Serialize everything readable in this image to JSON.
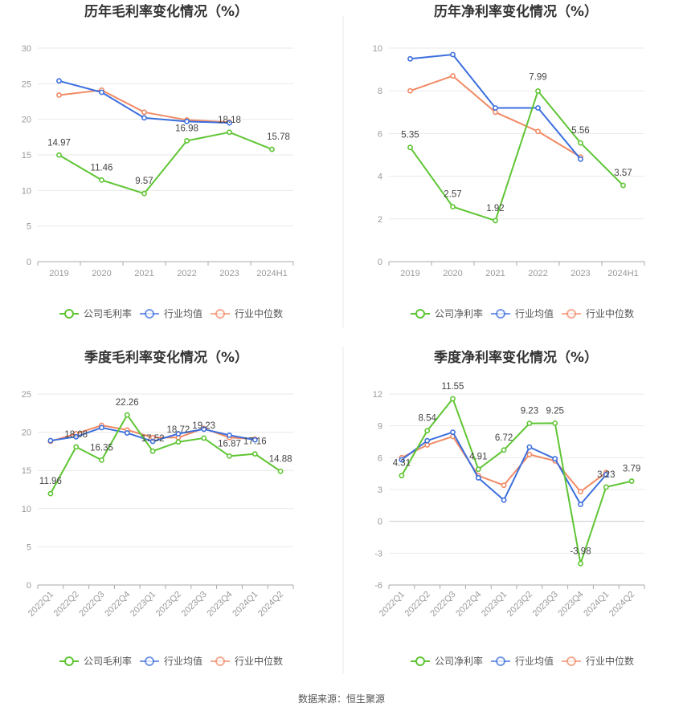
{
  "source": "数据来源：恒生聚源",
  "chart_data": [
    {
      "type": "line",
      "title": "历年毛利率变化情况（%）",
      "categories": [
        "2019",
        "2020",
        "2021",
        "2022",
        "2023",
        "2024H1"
      ],
      "ylim": [
        0,
        30
      ],
      "yticks": [
        0,
        5,
        10,
        15,
        20,
        25,
        30
      ],
      "grid": true,
      "legend": "bottom",
      "series": [
        {
          "name": "公司毛利率",
          "color": "#5fc534",
          "values": [
            14.97,
            11.46,
            9.57,
            16.98,
            18.18,
            15.78
          ],
          "labels": [
            "14.97",
            "11.46",
            "9.57",
            "16.98",
            "18.18",
            "15.78"
          ]
        },
        {
          "name": "行业均值",
          "color": "#3c6fdd",
          "values": [
            25.4,
            23.8,
            20.2,
            19.7,
            19.5,
            null
          ]
        },
        {
          "name": "行业中位数",
          "color": "#f08a64",
          "values": [
            23.4,
            24.1,
            21.0,
            19.9,
            19.6,
            null
          ]
        }
      ]
    },
    {
      "type": "line",
      "title": "历年净利率变化情况（%）",
      "categories": [
        "2019",
        "2020",
        "2021",
        "2022",
        "2023",
        "2024H1"
      ],
      "ylim": [
        0,
        10
      ],
      "yticks": [
        0,
        2,
        4,
        6,
        8,
        10
      ],
      "grid": true,
      "legend": "bottom",
      "series": [
        {
          "name": "公司净利率",
          "color": "#5fc534",
          "values": [
            5.35,
            2.57,
            1.92,
            7.99,
            5.56,
            3.57
          ],
          "labels": [
            "5.35",
            "2.57",
            "1.92",
            "7.99",
            "5.56",
            "3.57"
          ]
        },
        {
          "name": "行业均值",
          "color": "#3c6fdd",
          "values": [
            9.5,
            9.7,
            7.2,
            7.2,
            4.8,
            null
          ]
        },
        {
          "name": "行业中位数",
          "color": "#f08a64",
          "values": [
            8.0,
            8.7,
            7.0,
            6.1,
            4.9,
            null
          ]
        }
      ]
    },
    {
      "type": "line",
      "title": "季度毛利率变化情况（%）",
      "categories": [
        "2022Q1",
        "2022Q2",
        "2022Q3",
        "2022Q4",
        "2023Q1",
        "2023Q2",
        "2023Q3",
        "2023Q4",
        "2024Q1",
        "2024Q2"
      ],
      "ylim": [
        0,
        25
      ],
      "yticks": [
        0,
        5,
        10,
        15,
        20,
        25
      ],
      "grid": true,
      "legend": "bottom",
      "series": [
        {
          "name": "公司毛利率",
          "color": "#5fc534",
          "values": [
            11.96,
            18.08,
            16.35,
            22.26,
            17.52,
            18.72,
            19.23,
            16.87,
            17.16,
            14.88
          ],
          "labels": [
            "11.96",
            "18.08",
            "16.35",
            "22.26",
            "17.52",
            "18.72",
            "19.23",
            "16.87",
            "17.16",
            "14.88"
          ]
        },
        {
          "name": "行业均值",
          "color": "#3c6fdd",
          "values": [
            18.9,
            19.4,
            20.6,
            19.9,
            18.8,
            19.8,
            20.4,
            19.6,
            19.0,
            null
          ]
        },
        {
          "name": "行业中位数",
          "color": "#f08a64",
          "values": [
            18.8,
            19.8,
            20.9,
            20.3,
            19.3,
            19.3,
            20.5,
            19.3,
            19.1,
            null
          ]
        }
      ]
    },
    {
      "type": "line",
      "title": "季度净利率变化情况（%）",
      "categories": [
        "2022Q1",
        "2022Q2",
        "2022Q3",
        "2022Q4",
        "2023Q1",
        "2023Q2",
        "2023Q3",
        "2023Q4",
        "2024Q1",
        "2024Q2"
      ],
      "ylim": [
        -6,
        12
      ],
      "yticks": [
        -6,
        -3,
        0,
        3,
        6,
        9,
        12
      ],
      "grid": true,
      "legend": "bottom",
      "series": [
        {
          "name": "公司净利率",
          "color": "#5fc534",
          "values": [
            4.31,
            8.54,
            11.55,
            4.91,
            6.72,
            9.23,
            9.25,
            -3.98,
            3.23,
            3.79
          ],
          "labels": [
            "4.31",
            "8.54",
            "11.55",
            "4.91",
            "6.72",
            "9.23",
            "9.25",
            "-3.98",
            "3.23",
            "3.79"
          ]
        },
        {
          "name": "行业均值",
          "color": "#3c6fdd",
          "values": [
            5.8,
            7.6,
            8.4,
            4.1,
            2.0,
            7.0,
            5.9,
            1.6,
            4.4,
            null
          ]
        },
        {
          "name": "行业中位数",
          "color": "#f08a64",
          "values": [
            6.0,
            7.2,
            8.0,
            4.3,
            3.4,
            6.3,
            5.7,
            2.8,
            4.6,
            null
          ]
        }
      ]
    }
  ]
}
